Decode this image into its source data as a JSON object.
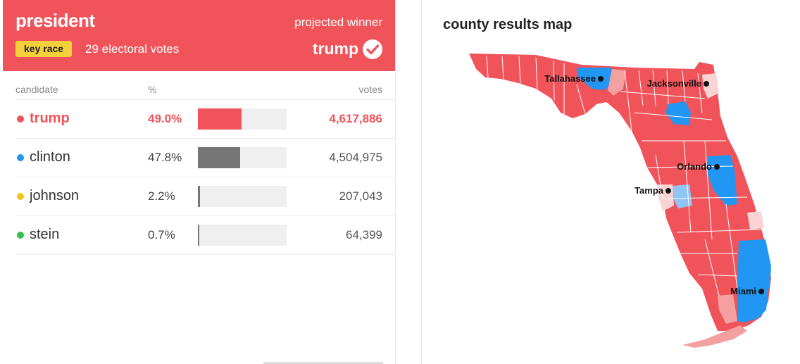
{
  "race": {
    "title": "president",
    "badge": "key race",
    "electoral_votes": "29 electoral votes",
    "projected_label": "projected winner",
    "winner": "trump"
  },
  "table": {
    "headers": {
      "candidate": "candidate",
      "pct": "%",
      "votes": "votes"
    },
    "rows": [
      {
        "name": "trump",
        "pct": "49.0%",
        "pct_value": 49.0,
        "votes": "4,617,886",
        "dot_color": "#f0545a",
        "bar_color": "#f0545a"
      },
      {
        "name": "clinton",
        "pct": "47.8%",
        "pct_value": 47.8,
        "votes": "4,504,975",
        "dot_color": "#2196f3",
        "bar_color": "#767676"
      },
      {
        "name": "johnson",
        "pct": "2.2%",
        "pct_value": 2.2,
        "votes": "207,043",
        "dot_color": "#f7c21a",
        "bar_color": "#767676"
      },
      {
        "name": "stein",
        "pct": "0.7%",
        "pct_value": 0.7,
        "votes": "64,399",
        "dot_color": "#2fc14f",
        "bar_color": "#767676"
      }
    ]
  },
  "map": {
    "title": "county results map",
    "cities": {
      "tallahassee": "Tallahassee",
      "jacksonville": "Jacksonville",
      "orlando": "Orlando",
      "tampa": "Tampa",
      "miami": "Miami"
    },
    "colors": {
      "rep": "#f0545a",
      "rep_light": "#f4a0a0",
      "rep_pale": "#f9d4d4",
      "dem": "#2196f3",
      "dem_light": "#8fc4f4"
    }
  }
}
